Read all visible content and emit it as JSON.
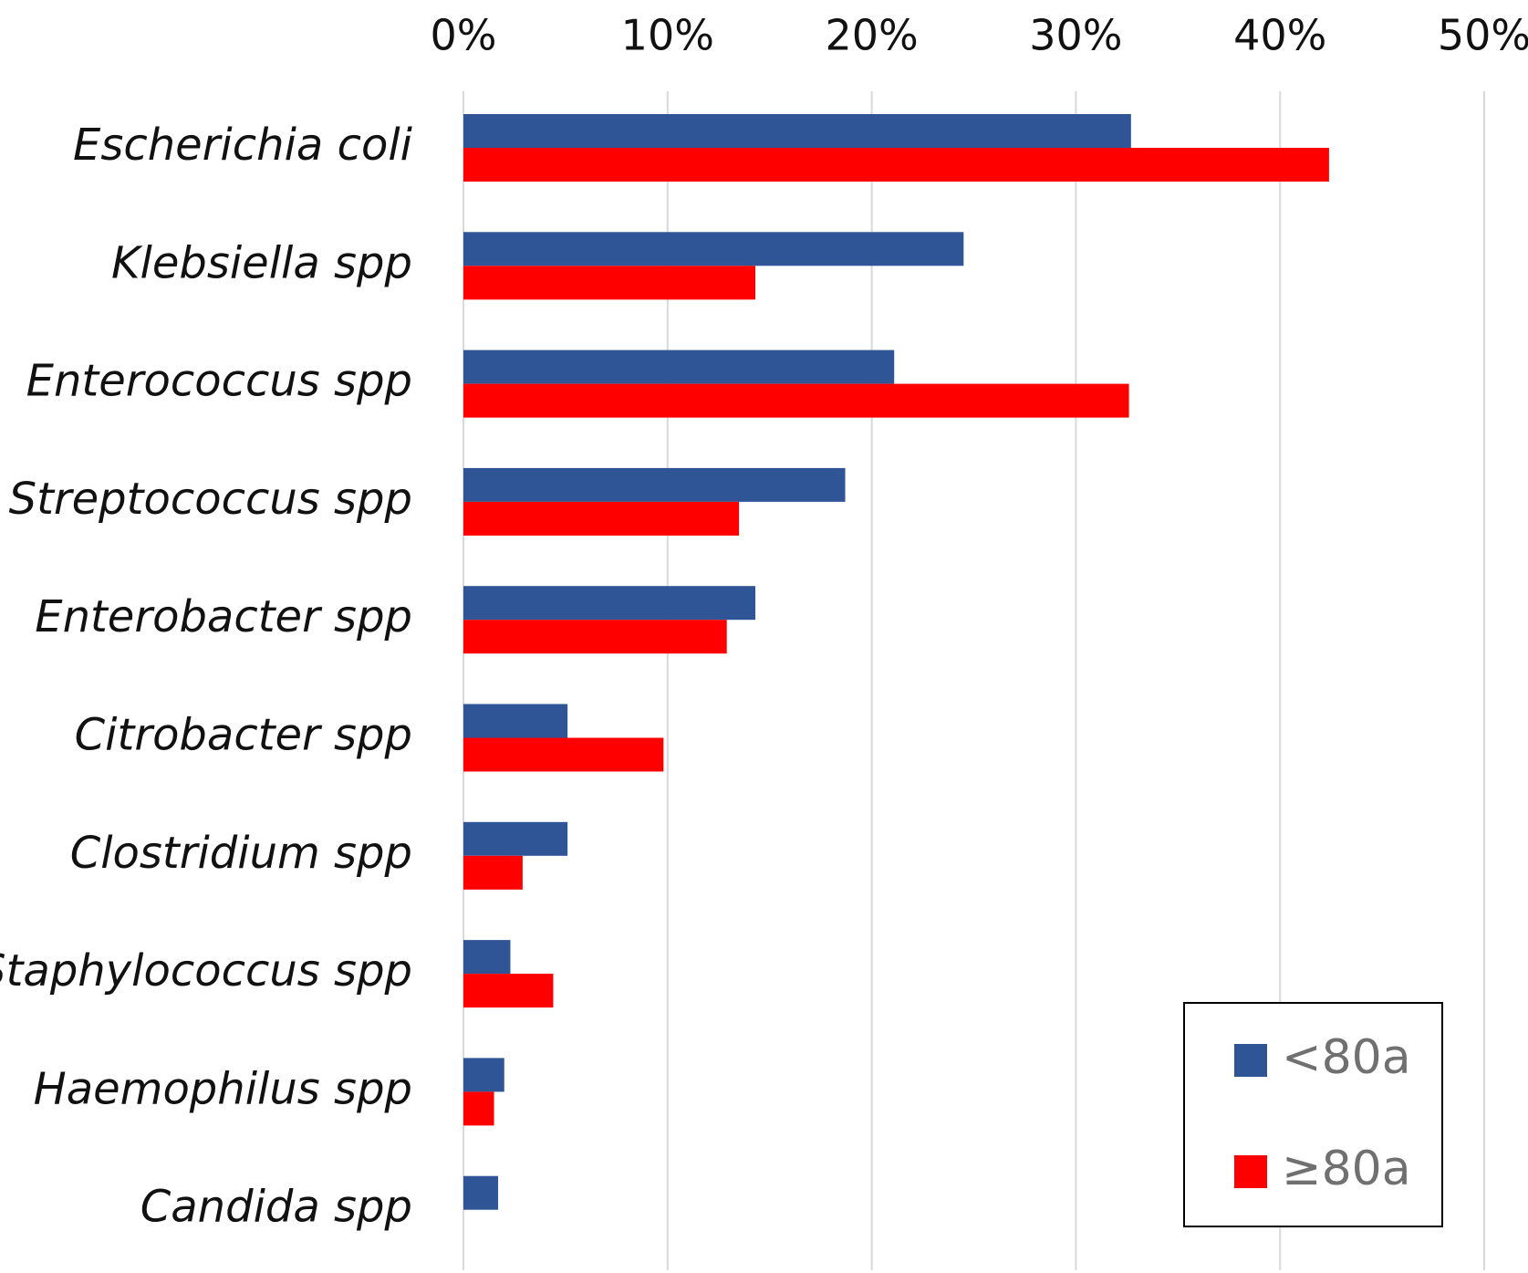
{
  "chart_data": {
    "type": "bar",
    "orientation": "horizontal",
    "title": "",
    "xlabel": "",
    "ylabel": "",
    "xlim": [
      0,
      50
    ],
    "x_ticks": [
      "0%",
      "10%",
      "20%",
      "30%",
      "40%",
      "50%"
    ],
    "x_tick_values": [
      0,
      10,
      20,
      30,
      40,
      50
    ],
    "x_axis_position": "top",
    "grid": true,
    "legend": {
      "position": "bottom-right",
      "bordered": true
    },
    "categories": [
      "Escherichia coli",
      "Klebsiella spp",
      "Enterococcus spp",
      "Streptococcus spp",
      "Enterobacter spp",
      "Citrobacter spp",
      "Clostridium spp",
      "Staphylococcus spp",
      "Haemophilus spp",
      "Candida spp"
    ],
    "series": [
      {
        "name": "<80a",
        "color": "#2f5597",
        "values": [
          32.7,
          24.5,
          21.1,
          18.7,
          14.3,
          5.1,
          5.1,
          2.3,
          2.0,
          1.7
        ]
      },
      {
        "name": "≥80a",
        "color": "#ff0000",
        "values": [
          42.4,
          14.3,
          32.6,
          13.5,
          12.9,
          9.8,
          2.9,
          4.4,
          1.5,
          0
        ]
      }
    ]
  }
}
